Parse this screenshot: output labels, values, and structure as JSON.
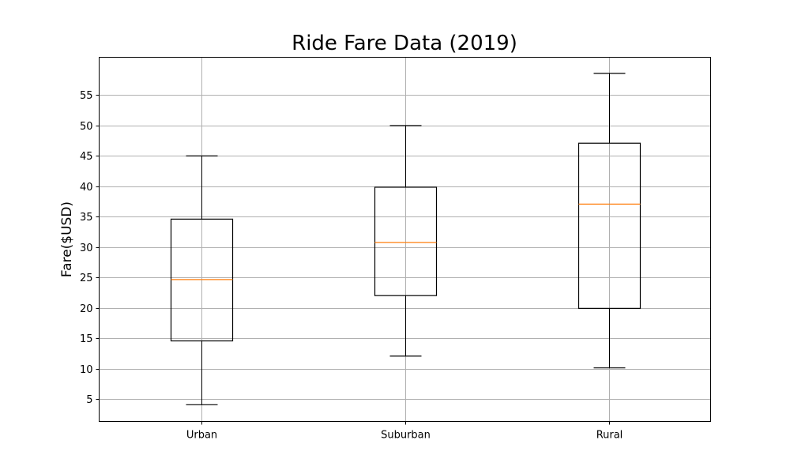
{
  "chart_data": {
    "type": "box",
    "title": "Ride Fare Data (2019)",
    "xlabel": "",
    "ylabel": "Fare($USD)",
    "categories": [
      "Urban",
      "Suburban",
      "Rural"
    ],
    "boxes": [
      {
        "category": "Urban",
        "whisker_low": 4.05,
        "q1": 14.55,
        "median": 24.64,
        "q3": 34.58,
        "whisker_high": 44.97
      },
      {
        "category": "Suburban",
        "whisker_low": 12.05,
        "q1": 22.0,
        "median": 30.75,
        "q3": 39.83,
        "whisker_high": 49.96
      },
      {
        "category": "Rural",
        "whisker_low": 10.11,
        "q1": 19.9,
        "median": 37.05,
        "q3": 47.07,
        "whisker_high": 58.55
      }
    ],
    "yticks": [
      5,
      10,
      15,
      20,
      25,
      30,
      35,
      40,
      45,
      50,
      55
    ],
    "ylim": [
      1.3,
      61.2
    ],
    "grid": true,
    "colors": {
      "box": "#000000",
      "median": "#ff7f0e",
      "grid": "#b0b0b0"
    }
  }
}
